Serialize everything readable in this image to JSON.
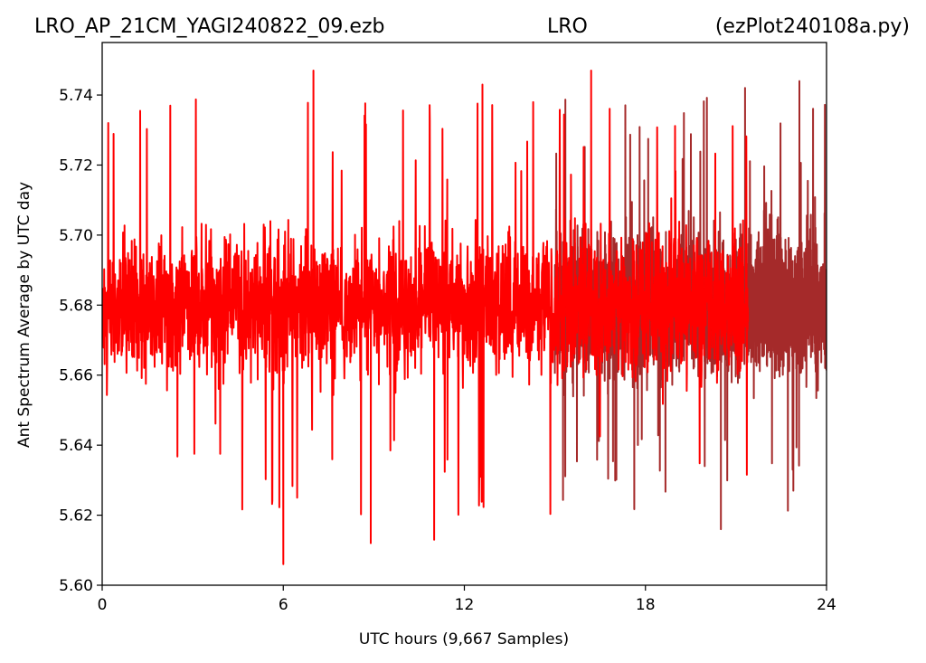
{
  "header": {
    "left": "LRO_AP_21CM_YAGI240822_09.ezb",
    "center": "LRO",
    "right": "(ezPlot240108a.py)"
  },
  "chart_data": {
    "type": "line",
    "xlabel": "UTC hours  (9,667 Samples)",
    "ylabel": "Ant Spectrum Average by UTC day",
    "xlim": [
      0,
      24
    ],
    "ylim": [
      5.6,
      5.755
    ],
    "x_ticks": [
      "0",
      "6",
      "12",
      "18",
      "24"
    ],
    "y_ticks": [
      "5.60",
      "5.62",
      "5.64",
      "5.66",
      "5.68",
      "5.70",
      "5.72",
      "5.74"
    ],
    "grid": false,
    "sample_count": 9667,
    "series": [
      {
        "color": "#ff0000",
        "x_range": [
          0,
          21.4
        ],
        "center": 5.68,
        "typical_band": [
          5.65,
          5.71
        ],
        "extremes": [
          [
            0.2,
            5.732
          ],
          [
            6.0,
            5.606
          ],
          [
            7.0,
            5.747
          ],
          [
            8.9,
            5.612
          ],
          [
            11.0,
            5.613
          ],
          [
            12.6,
            5.743
          ],
          [
            16.2,
            5.747
          ]
        ]
      },
      {
        "color": "#a52a2a",
        "x_range": [
          15.0,
          24
        ],
        "center": 5.68,
        "typical_band": [
          5.65,
          5.71
        ],
        "extremes": [
          [
            20.5,
            5.616
          ],
          [
            21.3,
            5.742
          ],
          [
            23.1,
            5.744
          ],
          [
            22.9,
            5.627
          ]
        ]
      }
    ]
  }
}
